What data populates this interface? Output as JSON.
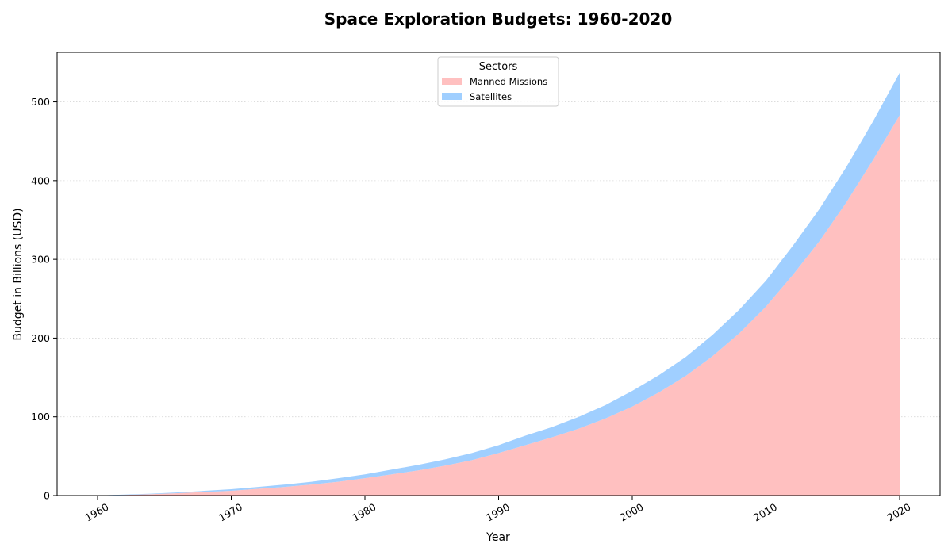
{
  "chart_data": {
    "type": "area",
    "stacked": true,
    "title": "Space Exploration Budgets: 1960-2020",
    "xlabel": "Year",
    "ylabel": "Budget in Billions (USD)",
    "x": [
      1960,
      1962,
      1964,
      1966,
      1968,
      1970,
      1972,
      1974,
      1976,
      1978,
      1980,
      1982,
      1984,
      1986,
      1988,
      1990,
      1992,
      1994,
      1996,
      1998,
      2000,
      2002,
      2004,
      2006,
      2008,
      2010,
      2012,
      2014,
      2016,
      2018,
      2020
    ],
    "series": [
      {
        "name": "Manned Missions",
        "color": "#ffc0c0",
        "values": [
          0.1,
          0.8,
          1.8,
          3.0,
          4.5,
          6.0,
          8.5,
          11.0,
          14.0,
          17.5,
          22.0,
          27.0,
          32.0,
          38.0,
          45.0,
          54.0,
          64.0,
          74.0,
          85.0,
          98.0,
          113.0,
          131.0,
          152.0,
          177.0,
          206.0,
          240.0,
          280.0,
          323.0,
          372.0,
          426.0,
          483.0
        ]
      },
      {
        "name": "Satellites",
        "color": "#a0cfff",
        "values": [
          0.0,
          0.4,
          0.6,
          1.0,
          1.5,
          2.0,
          2.5,
          3.0,
          3.5,
          4.5,
          5.0,
          6.0,
          7.0,
          8.0,
          9.0,
          10.0,
          12.0,
          13.0,
          15.0,
          17.0,
          20.0,
          22.0,
          24.0,
          27.0,
          30.0,
          33.0,
          37.0,
          41.0,
          45.0,
          49.0,
          54.0
        ]
      }
    ],
    "xlim": [
      1960,
      2020
    ],
    "ylim": [
      0,
      563
    ],
    "xticks": [
      1960,
      1970,
      1980,
      1990,
      2000,
      2010,
      2020
    ],
    "yticks": [
      0,
      100,
      200,
      300,
      400,
      500
    ],
    "grid": "y-dotted",
    "legend": {
      "title": "Sectors",
      "placement": "top-center"
    }
  }
}
